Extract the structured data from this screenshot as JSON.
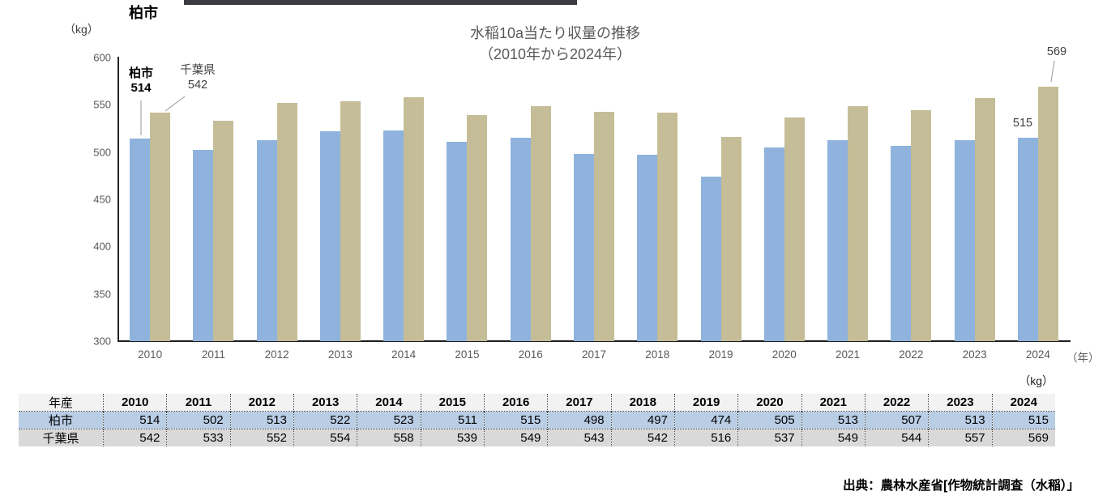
{
  "page": {
    "corner_title": "柏市",
    "source": "出典：農林水産省[作物統計調査（水稲）」"
  },
  "chart": {
    "title_line1": "水稲10a当たり収量の推移",
    "title_line2": "（2010年から2024年）",
    "y_unit_label": "（kg）",
    "x_unit_label": "（年）",
    "callouts": {
      "kashiwa_label": "柏市",
      "kashiwa_value": "514",
      "chiba_label": "千葉県",
      "chiba_value": "542",
      "last_chiba_value": "569",
      "last_kashiwa_value": "515"
    }
  },
  "chart_data": {
    "type": "bar",
    "title": "水稲10a当たり収量の推移（2010年から2024年）",
    "xlabel": "年",
    "ylabel": "kg",
    "categories": [
      "2010",
      "2011",
      "2012",
      "2013",
      "2014",
      "2015",
      "2016",
      "2017",
      "2018",
      "2019",
      "2020",
      "2021",
      "2022",
      "2023",
      "2024"
    ],
    "series": [
      {
        "name": "柏市",
        "color": "#8FB3DC",
        "values": [
          514,
          502,
          513,
          522,
          523,
          511,
          515,
          498,
          497,
          474,
          505,
          513,
          507,
          513,
          515
        ]
      },
      {
        "name": "千葉県",
        "color": "#C4BD97",
        "values": [
          542,
          533,
          552,
          554,
          558,
          539,
          549,
          543,
          542,
          516,
          537,
          549,
          544,
          557,
          569
        ]
      }
    ],
    "ylim": [
      300,
      600
    ],
    "yticks": [
      600,
      550,
      500,
      450,
      400,
      350,
      300
    ],
    "ytick_step": 50,
    "grid": false,
    "legend_position": "annotations-on-first-and-last-bars"
  },
  "table": {
    "unit_label": "（kg）",
    "header_label": "年産",
    "years": [
      "2010",
      "2011",
      "2012",
      "2013",
      "2014",
      "2015",
      "2016",
      "2017",
      "2018",
      "2019",
      "2020",
      "2021",
      "2022",
      "2023",
      "2024"
    ],
    "rows": [
      {
        "label": "柏市",
        "bg": "#B9CDE5",
        "values": [
          "514",
          "502",
          "513",
          "522",
          "523",
          "511",
          "515",
          "498",
          "497",
          "474",
          "505",
          "513",
          "507",
          "513",
          "515"
        ]
      },
      {
        "label": "千葉県",
        "bg": "#D9D9D9",
        "values": [
          "542",
          "533",
          "552",
          "554",
          "558",
          "539",
          "549",
          "543",
          "542",
          "516",
          "537",
          "549",
          "544",
          "557",
          "569"
        ]
      }
    ]
  },
  "colors": {
    "kashiwa_bar": "#8FB3DC",
    "chiba_bar": "#C4BD97",
    "header_row_bg": "#F2F2F2",
    "kashiwa_row_bg": "#B9CDE5",
    "chiba_row_bg": "#D9D9D9",
    "title_text": "#595959",
    "top_strip": "#3a3a40"
  }
}
